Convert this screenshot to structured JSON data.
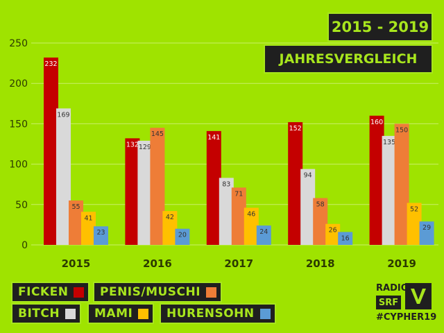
{
  "colors": {
    "background": "#9fe300",
    "dark": "#1f1f1f",
    "accent": "#a8e61d",
    "grid": "#c9f06a",
    "axis_text": "#2b3a00"
  },
  "header": {
    "year_range": "2015 - 2019",
    "title": "JAHRESVERGLEICH"
  },
  "legend": [
    {
      "label": "FICKEN",
      "color": "#c40000"
    },
    {
      "label": "PENIS/MUSCHI",
      "color": "#ee7d37"
    },
    {
      "label": "BITCH",
      "color": "#d9d9d9"
    },
    {
      "label": "MAMI",
      "color": "#ffc000"
    },
    {
      "label": "HURENSOHN",
      "color": "#5b9bd5"
    }
  ],
  "logo": {
    "radio": "RADIO",
    "srf": "SRF",
    "hashtag": "#CYPHER19",
    "icon": "v-check-icon"
  },
  "chart_data": {
    "type": "bar",
    "title": "",
    "xlabel": "",
    "ylabel": "",
    "categories": [
      "2015",
      "2016",
      "2017",
      "2018",
      "2019"
    ],
    "ylim": [
      0,
      250
    ],
    "yticks": [
      0,
      50,
      100,
      150,
      200,
      250
    ],
    "grid": true,
    "legend_position": "bottom",
    "series": [
      {
        "name": "FICKEN",
        "color": "#c40000",
        "values": [
          232,
          132,
          141,
          152,
          160
        ]
      },
      {
        "name": "BITCH",
        "color": "#d9d9d9",
        "values": [
          169,
          129,
          83,
          94,
          135
        ]
      },
      {
        "name": "PENIS/MUSCHI",
        "color": "#ee7d37",
        "values": [
          55,
          145,
          71,
          58,
          150
        ]
      },
      {
        "name": "MAMI",
        "color": "#ffc000",
        "values": [
          41,
          42,
          46,
          26,
          52
        ]
      },
      {
        "name": "HURENSOHN",
        "color": "#5b9bd5",
        "values": [
          23,
          20,
          24,
          16,
          29
        ]
      }
    ]
  }
}
